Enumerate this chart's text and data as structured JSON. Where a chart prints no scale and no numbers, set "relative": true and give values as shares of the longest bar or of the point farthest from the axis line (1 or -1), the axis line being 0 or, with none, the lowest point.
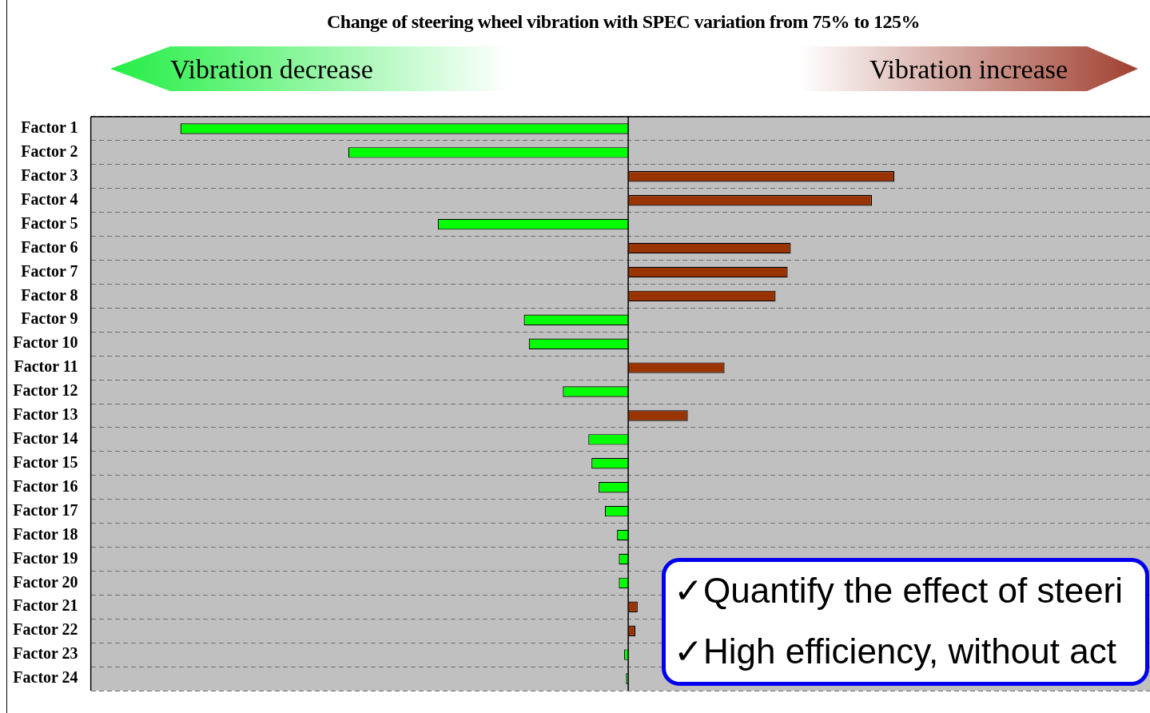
{
  "chart_data": {
    "type": "bar",
    "orientation": "horizontal",
    "relative": true,
    "title": "Change of steering wheel vibration with SPEC variation from 75%  to 125%",
    "categories": [
      "Factor 1",
      "Factor 2",
      "Factor 3",
      "Factor 4",
      "Factor 5",
      "Factor 6",
      "Factor 7",
      "Factor 8",
      "Factor 9",
      "Factor 10",
      "Factor 11",
      "Factor 12",
      "Factor 13",
      "Factor 14",
      "Factor 15",
      "Factor 16",
      "Factor 17",
      "Factor 18",
      "Factor 19",
      "Factor 20",
      "Factor 21",
      "Factor 22",
      "Factor 23",
      "Factor 24"
    ],
    "values": [
      -1,
      -0.625,
      0.594,
      0.544,
      -0.425,
      0.363,
      0.356,
      0.329,
      -0.233,
      -0.222,
      0.215,
      -0.146,
      0.133,
      -0.089,
      -0.082,
      -0.066,
      -0.052,
      -0.025,
      -0.021,
      -0.021,
      0.021,
      0.016,
      -0.009,
      -0.005
    ],
    "colors": [
      "#00ff00",
      "#00ff00",
      "#993300",
      "#993300",
      "#00ff00",
      "#993300",
      "#993300",
      "#993300",
      "#00ff00",
      "#00ff00",
      "#993300",
      "#00ff00",
      "#993300",
      "#00ff00",
      "#00ff00",
      "#00ff00",
      "#00ff00",
      "#00ff00",
      "#00ff00",
      "#00ff00",
      "#993300",
      "#993300",
      "#00ff00",
      "#00ff00"
    ],
    "grid": "y",
    "legend": false,
    "tick_labels": "y",
    "annotations": [
      "Vibration decrease",
      "Vibration increase",
      "✓Quantify the effect of steeri",
      "✓High efficiency, without act"
    ]
  }
}
